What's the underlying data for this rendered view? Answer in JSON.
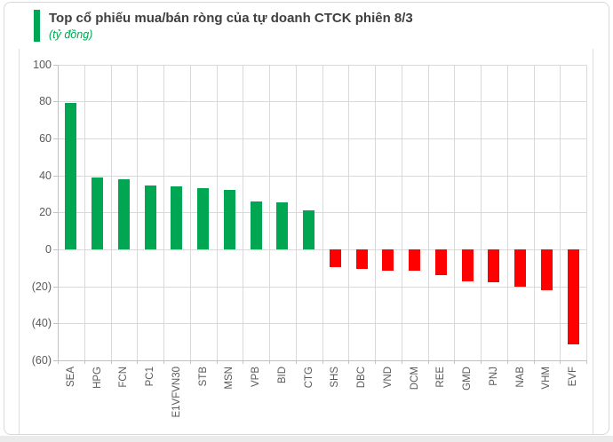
{
  "header": {
    "title": "Top cổ phiếu mua/bán ròng của tự doanh CTCK phiên 8/3",
    "unit_label": "(tỷ đồng)"
  },
  "colors": {
    "positive": "#00A651",
    "negative": "#FF0000",
    "accent": "#00A651",
    "grid": "#D9D9D9",
    "axis": "#C3C3C3",
    "title_text": "#3F3F3F",
    "axis_text": "#595959"
  },
  "chart_data": {
    "type": "bar",
    "title": "Top cổ phiếu mua/bán ròng của tự doanh CTCK phiên 8/3",
    "subtitle": "(tỷ đồng)",
    "xlabel": "",
    "ylabel": "tỷ đồng",
    "categories": [
      "SEA",
      "HPG",
      "FCN",
      "PC1",
      "E1VFVN30",
      "STB",
      "MSN",
      "VPB",
      "BID",
      "CTG",
      "SHS",
      "DBC",
      "VND",
      "DCM",
      "REE",
      "GMD",
      "PNJ",
      "NAB",
      "VHM",
      "EVF"
    ],
    "values": [
      79,
      39,
      38,
      34.5,
      34,
      33,
      32,
      26,
      25.5,
      21,
      -9.5,
      -10.5,
      -11.5,
      -11.5,
      -14,
      -17.5,
      -18,
      -20,
      -22,
      -51.5
    ],
    "ylim": [
      -60,
      100
    ],
    "yticks": [
      100,
      80,
      60,
      40,
      20,
      0,
      -20,
      -40,
      -60
    ],
    "ytick_labels": [
      "100",
      "80",
      "60",
      "40",
      "20",
      "0",
      "(20)",
      "(40)",
      "(60)"
    ],
    "grid": true,
    "legend": false
  }
}
